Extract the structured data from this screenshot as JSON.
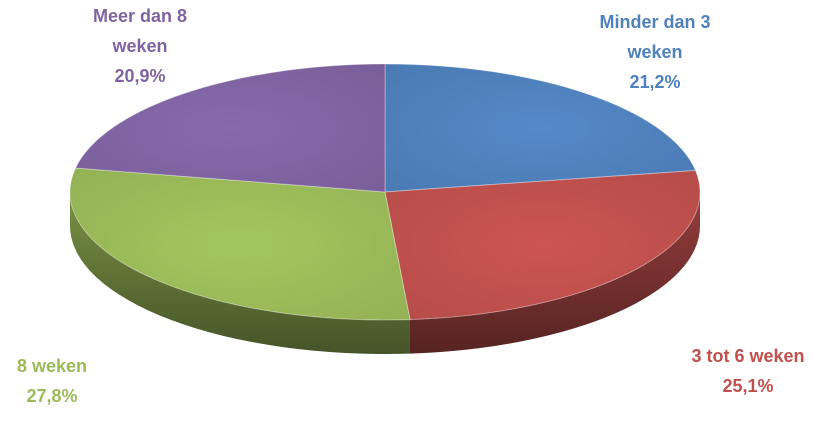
{
  "chart_data": {
    "type": "pie",
    "style": "3d-tilted",
    "decimal_separator": ",",
    "slices": [
      {
        "label_lines": [
          "Minder dan 3",
          "weken"
        ],
        "value": 21.2,
        "value_text": "21,2%",
        "color": "#4F81BD"
      },
      {
        "label_lines": [
          "3 tot 6 weken"
        ],
        "value": 25.1,
        "value_text": "25,1%",
        "color": "#C0504D"
      },
      {
        "label_lines": [
          "8 weken"
        ],
        "value": 27.8,
        "value_text": "27,8%",
        "color": "#9BBB59"
      },
      {
        "label_lines": [
          "Meer dan 8",
          "weken"
        ],
        "value": 20.9,
        "value_text": "20,9%",
        "color": "#8064A2"
      }
    ]
  }
}
